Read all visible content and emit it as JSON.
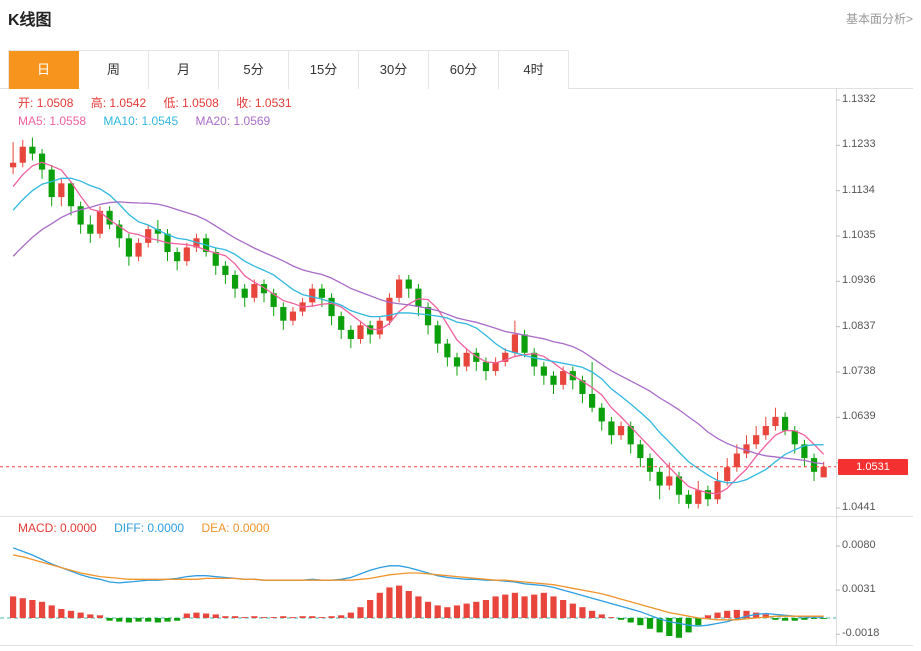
{
  "header": {
    "title": "K线图",
    "link": "基本面分析>"
  },
  "tabs": {
    "items": [
      {
        "label": "日",
        "active": true
      },
      {
        "label": "周"
      },
      {
        "label": "月"
      },
      {
        "label": "5分"
      },
      {
        "label": "15分"
      },
      {
        "label": "30分"
      },
      {
        "label": "60分"
      },
      {
        "label": "4时"
      }
    ]
  },
  "ohlc": {
    "open_label": "开:",
    "open": "1.0508",
    "high_label": "高:",
    "high": "1.0542",
    "low_label": "低:",
    "low": "1.0508",
    "close_label": "收:",
    "close": "1.0531"
  },
  "ma_legend": {
    "ma5_label": "MA5:",
    "ma5": "1.0558",
    "ma10_label": "MA10:",
    "ma10": "1.0545",
    "ma20_label": "MA20:",
    "ma20": "1.0569"
  },
  "macd_legend": {
    "macd_label": "MACD:",
    "macd": "0.0000",
    "diff_label": "DIFF:",
    "diff": "0.0000",
    "dea_label": "DEA:",
    "dea": "0.0000"
  },
  "axis": {
    "price_labels": [
      "1.1332",
      "1.1233",
      "1.1134",
      "1.1035",
      "1.0936",
      "1.0837",
      "1.0738",
      "1.0639",
      "1.0441"
    ],
    "macd_labels": [
      "0.0080",
      "0.0031",
      "-0.0018"
    ],
    "current_price": "1.0531"
  },
  "colors": {
    "up": "#e8453c",
    "down": "#0ba00b",
    "ma5": "#f0609e",
    "ma10": "#2fb8e0",
    "ma20": "#a96bc8",
    "diff": "#2d9de0",
    "dea": "#f0932a",
    "accent_tab": "#f7941e",
    "price_line": "#ff4040",
    "badge_bg": "#f43030",
    "zero_line": "#45b8ac",
    "border": "#e0e0e0"
  },
  "chart_data": {
    "type": "candlestick",
    "title": "K线图",
    "timeframe": "日",
    "price_axis": {
      "gridlines": [
        1.0441,
        1.054,
        1.0639,
        1.0738,
        1.0837,
        1.0936,
        1.1035,
        1.1134,
        1.1233,
        1.1332
      ]
    },
    "current_price": 1.0531,
    "ohlc_latest": {
      "open": 1.0508,
      "high": 1.0542,
      "low": 1.0508,
      "close": 1.0531
    },
    "ma_current": {
      "MA5": 1.0558,
      "MA10": 1.0545,
      "MA20": 1.0569
    },
    "implied_prior_closes": [
      1.078,
      1.08,
      1.082,
      1.084,
      1.086,
      1.088,
      1.09,
      1.092,
      1.094,
      1.096,
      1.098,
      1.1,
      1.102,
      1.104,
      1.106,
      1.108,
      1.11,
      1.112,
      1.114,
      1.116
    ],
    "candles": [
      [
        1.1185,
        1.124,
        1.117,
        1.1195
      ],
      [
        1.1195,
        1.1245,
        1.1185,
        1.123
      ],
      [
        1.123,
        1.125,
        1.12,
        1.1215
      ],
      [
        1.1215,
        1.1225,
        1.116,
        1.118
      ],
      [
        1.118,
        1.119,
        1.11,
        1.112
      ],
      [
        1.112,
        1.116,
        1.11,
        1.115
      ],
      [
        1.115,
        1.1155,
        1.108,
        1.11
      ],
      [
        1.11,
        1.111,
        1.104,
        1.106
      ],
      [
        1.106,
        1.108,
        1.102,
        1.104
      ],
      [
        1.104,
        1.11,
        1.103,
        1.109
      ],
      [
        1.109,
        1.11,
        1.105,
        1.106
      ],
      [
        1.106,
        1.107,
        1.101,
        1.103
      ],
      [
        1.103,
        1.104,
        1.097,
        1.099
      ],
      [
        1.099,
        1.103,
        1.098,
        1.102
      ],
      [
        1.102,
        1.106,
        1.101,
        1.105
      ],
      [
        1.105,
        1.107,
        1.102,
        1.104
      ],
      [
        1.104,
        1.105,
        1.098,
        1.1
      ],
      [
        1.1,
        1.101,
        1.096,
        1.098
      ],
      [
        1.098,
        1.102,
        1.097,
        1.101
      ],
      [
        1.101,
        1.104,
        1.1,
        1.103
      ],
      [
        1.103,
        1.104,
        1.099,
        1.1
      ],
      [
        1.1,
        1.101,
        1.095,
        1.097
      ],
      [
        1.097,
        1.098,
        1.093,
        1.095
      ],
      [
        1.095,
        1.096,
        1.09,
        1.092
      ],
      [
        1.092,
        1.093,
        1.088,
        1.09
      ],
      [
        1.09,
        1.094,
        1.089,
        1.093
      ],
      [
        1.093,
        1.094,
        1.089,
        1.091
      ],
      [
        1.091,
        1.092,
        1.086,
        1.088
      ],
      [
        1.088,
        1.089,
        1.083,
        1.085
      ],
      [
        1.085,
        1.088,
        1.084,
        1.087
      ],
      [
        1.087,
        1.09,
        1.086,
        1.089
      ],
      [
        1.089,
        1.093,
        1.088,
        1.092
      ],
      [
        1.092,
        1.093,
        1.088,
        1.09
      ],
      [
        1.09,
        1.091,
        1.084,
        1.086
      ],
      [
        1.086,
        1.087,
        1.081,
        1.083
      ],
      [
        1.083,
        1.084,
        1.079,
        1.081
      ],
      [
        1.081,
        1.085,
        1.08,
        1.084
      ],
      [
        1.084,
        1.085,
        1.08,
        1.082
      ],
      [
        1.082,
        1.086,
        1.081,
        1.085
      ],
      [
        1.085,
        1.091,
        1.084,
        1.09
      ],
      [
        1.09,
        1.095,
        1.089,
        1.094
      ],
      [
        1.094,
        1.095,
        1.09,
        1.092
      ],
      [
        1.092,
        1.093,
        1.086,
        1.088
      ],
      [
        1.088,
        1.089,
        1.082,
        1.084
      ],
      [
        1.084,
        1.085,
        1.078,
        1.08
      ],
      [
        1.08,
        1.081,
        1.075,
        1.077
      ],
      [
        1.077,
        1.078,
        1.073,
        1.075
      ],
      [
        1.075,
        1.079,
        1.074,
        1.078
      ],
      [
        1.078,
        1.079,
        1.074,
        1.076
      ],
      [
        1.076,
        1.077,
        1.072,
        1.074
      ],
      [
        1.074,
        1.077,
        1.073,
        1.076
      ],
      [
        1.076,
        1.079,
        1.075,
        1.078
      ],
      [
        1.078,
        1.085,
        1.077,
        1.082
      ],
      [
        1.082,
        1.083,
        1.077,
        1.078
      ],
      [
        1.078,
        1.079,
        1.073,
        1.075
      ],
      [
        1.075,
        1.076,
        1.071,
        1.073
      ],
      [
        1.073,
        1.074,
        1.069,
        1.071
      ],
      [
        1.071,
        1.075,
        1.07,
        1.074
      ],
      [
        1.074,
        1.075,
        1.07,
        1.072
      ],
      [
        1.072,
        1.073,
        1.067,
        1.069
      ],
      [
        1.069,
        1.076,
        1.065,
        1.066
      ],
      [
        1.066,
        1.067,
        1.061,
        1.063
      ],
      [
        1.063,
        1.064,
        1.058,
        1.06
      ],
      [
        1.06,
        1.063,
        1.059,
        1.062
      ],
      [
        1.062,
        1.063,
        1.056,
        1.058
      ],
      [
        1.058,
        1.059,
        1.053,
        1.055
      ],
      [
        1.055,
        1.056,
        1.05,
        1.052
      ],
      [
        1.052,
        1.053,
        1.046,
        1.049
      ],
      [
        1.049,
        1.054,
        1.048,
        1.051
      ],
      [
        1.051,
        1.052,
        1.045,
        1.047
      ],
      [
        1.047,
        1.048,
        1.044,
        1.045
      ],
      [
        1.045,
        1.05,
        1.044,
        1.048
      ],
      [
        1.048,
        1.049,
        1.0445,
        1.046
      ],
      [
        1.046,
        1.052,
        1.045,
        1.05
      ],
      [
        1.05,
        1.055,
        1.049,
        1.053
      ],
      [
        1.053,
        1.058,
        1.052,
        1.056
      ],
      [
        1.056,
        1.06,
        1.055,
        1.058
      ],
      [
        1.058,
        1.062,
        1.057,
        1.06
      ],
      [
        1.06,
        1.064,
        1.059,
        1.062
      ],
      [
        1.062,
        1.066,
        1.061,
        1.064
      ],
      [
        1.064,
        1.065,
        1.06,
        1.061
      ],
      [
        1.061,
        1.062,
        1.056,
        1.058
      ],
      [
        1.058,
        1.059,
        1.053,
        1.055
      ],
      [
        1.055,
        1.056,
        1.05,
        1.052
      ],
      [
        1.0508,
        1.0542,
        1.0508,
        1.0531
      ]
    ],
    "macd": {
      "MACD": 0.0,
      "DIFF": 0.0,
      "DEA": 0.0,
      "axis_gridlines": [
        0.008,
        0.0031,
        -0.0018
      ],
      "hist": [
        0.0024,
        0.0022,
        0.002,
        0.0018,
        0.0014,
        0.001,
        0.0008,
        0.0006,
        0.0004,
        0.0003,
        -0.0003,
        -0.0004,
        -0.0005,
        -0.0004,
        -0.0004,
        -0.0005,
        -0.0004,
        -0.0003,
        0.0005,
        0.0006,
        0.0005,
        0.0004,
        0.0002,
        0.0002,
        0.0001,
        0.0002,
        0.0001,
        0.0001,
        0.0002,
        0.0001,
        0.0002,
        0.0002,
        0.0001,
        0.0002,
        0.0003,
        0.0006,
        0.0012,
        0.002,
        0.0028,
        0.0034,
        0.0036,
        0.003,
        0.0024,
        0.0018,
        0.0014,
        0.0012,
        0.0014,
        0.0016,
        0.0018,
        0.002,
        0.0024,
        0.0026,
        0.0028,
        0.0024,
        0.0026,
        0.0028,
        0.0024,
        0.002,
        0.0016,
        0.0012,
        0.0008,
        0.0004,
        0.0001,
        -0.0002,
        -0.0005,
        -0.0008,
        -0.0012,
        -0.0016,
        -0.002,
        -0.0022,
        -0.0016,
        -0.0008,
        0.0003,
        0.0006,
        0.0008,
        0.0009,
        0.0008,
        0.0006,
        0.0004,
        -0.0002,
        -0.0003,
        -0.0003,
        -0.0002,
        -0.0001,
        -0.0001
      ],
      "diff_line": [
        0.0078,
        0.0074,
        0.007,
        0.0065,
        0.006,
        0.0056,
        0.0052,
        0.0048,
        0.0045,
        0.0043,
        0.004,
        0.0039,
        0.004,
        0.0041,
        0.0042,
        0.0042,
        0.0043,
        0.0044,
        0.0046,
        0.0047,
        0.0047,
        0.0046,
        0.0045,
        0.0044,
        0.0043,
        0.0043,
        0.0042,
        0.0042,
        0.0042,
        0.0042,
        0.0042,
        0.0043,
        0.0042,
        0.0042,
        0.0043,
        0.0045,
        0.0049,
        0.0053,
        0.0056,
        0.0058,
        0.0058,
        0.0056,
        0.0053,
        0.005,
        0.0047,
        0.0045,
        0.0044,
        0.0043,
        0.0043,
        0.0042,
        0.0042,
        0.0041,
        0.004,
        0.0038,
        0.0037,
        0.0036,
        0.0034,
        0.0031,
        0.0028,
        0.0025,
        0.0022,
        0.0019,
        0.0016,
        0.0013,
        0.001,
        0.0007,
        0.0003,
        -0.0001,
        -0.0004,
        -0.0006,
        -0.0008,
        -0.0009,
        -0.0008,
        -0.0006,
        -0.0004,
        -0.0001,
        0.0002,
        0.0004,
        0.0005,
        0.0004,
        0.0003,
        0.0002,
        0.0001,
        0.0001,
        0.0001
      ],
      "dea_line": [
        0.007,
        0.0068,
        0.0065,
        0.0062,
        0.0059,
        0.0056,
        0.0053,
        0.005,
        0.0048,
        0.0046,
        0.0045,
        0.0044,
        0.0043,
        0.0043,
        0.0043,
        0.0043,
        0.0043,
        0.0043,
        0.0043,
        0.0043,
        0.0044,
        0.0044,
        0.0044,
        0.0044,
        0.0043,
        0.0043,
        0.0042,
        0.0042,
        0.0042,
        0.0042,
        0.0042,
        0.0042,
        0.0042,
        0.0042,
        0.0042,
        0.0042,
        0.0043,
        0.0044,
        0.0046,
        0.0048,
        0.0049,
        0.005,
        0.005,
        0.0049,
        0.0048,
        0.0047,
        0.0046,
        0.0045,
        0.0044,
        0.0043,
        0.0042,
        0.0042,
        0.0041,
        0.004,
        0.0039,
        0.0038,
        0.0037,
        0.0035,
        0.0033,
        0.0031,
        0.0029,
        0.0027,
        0.0024,
        0.0021,
        0.0018,
        0.0015,
        0.0012,
        0.0009,
        0.0006,
        0.0004,
        0.0002,
        0.0,
        -0.0001,
        -0.0002,
        -0.0002,
        -0.0002,
        -0.0001,
        0.0,
        0.0001,
        0.0002,
        0.0002,
        0.0002,
        0.0002,
        0.0002,
        0.0002
      ]
    }
  }
}
